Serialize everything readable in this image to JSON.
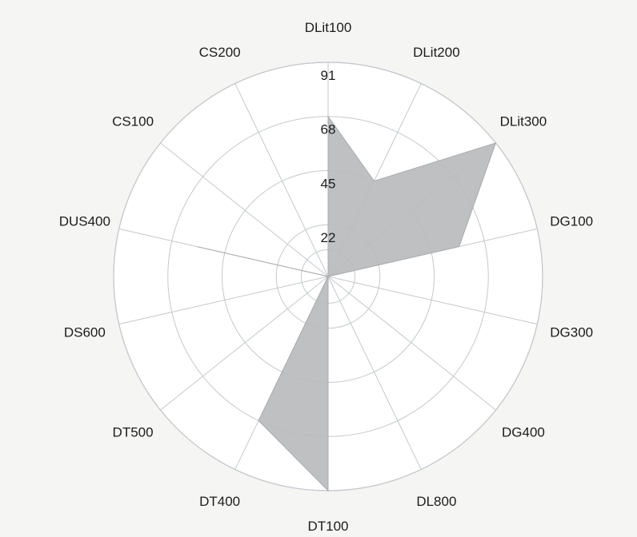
{
  "chart_data": {
    "type": "radar",
    "title": "",
    "categories": [
      "DLit100",
      "DLit200",
      "DLit300",
      "DG100",
      "DG300",
      "DG400",
      "DL800",
      "DT100",
      "DT400",
      "DT500",
      "DS600",
      "DUS400",
      "CS100",
      "CS200"
    ],
    "series": [
      {
        "values": [
          68,
          45,
          91,
          57,
          0,
          0,
          0,
          91,
          68,
          0,
          0,
          57,
          0,
          0
        ]
      }
    ],
    "radial_ticks": [
      22,
      45,
      68,
      91
    ],
    "rmax": 91,
    "grid": true,
    "colors": {
      "area": "#b9bbbd",
      "grid": "#c4c8ce",
      "background": "#f5f5f3",
      "plot_background": "#ffffff"
    }
  }
}
